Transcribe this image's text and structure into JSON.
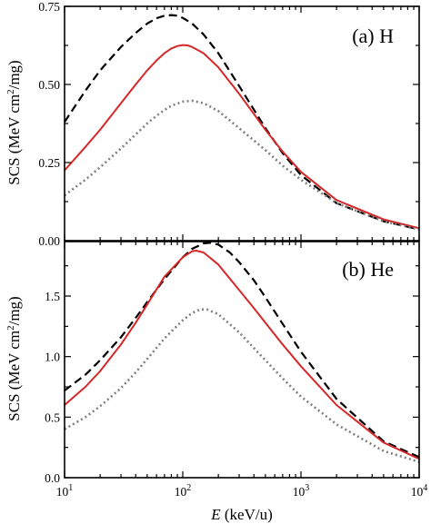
{
  "chart_data": {
    "type": "line",
    "xlabel_italic": "E",
    "xlabel_unit": " (keV/u)",
    "xscale": "log",
    "xlim": [
      10,
      10000
    ],
    "x_ticks": [
      {
        "base": "10",
        "exp": "1"
      },
      {
        "base": "10",
        "exp": "2"
      },
      {
        "base": "10",
        "exp": "3"
      },
      {
        "base": "10",
        "exp": "4"
      }
    ],
    "ylabel_pre": "SCS (MeV cm",
    "ylabel_sup": "2",
    "ylabel_post": "/mg)",
    "series_styles": [
      {
        "color": "#000000",
        "dash": "9,5",
        "width": 2.2
      },
      {
        "color": "#d62728",
        "dash": "",
        "width": 2.0
      },
      {
        "color": "#808080",
        "dash": "2,3.2",
        "width": 2.6
      }
    ],
    "panels": [
      {
        "label": "(a) H",
        "ylim": [
          0,
          0.75
        ],
        "yticks": [
          0.0,
          0.25,
          0.5,
          0.75
        ],
        "ytick_labels": [
          "0.00",
          "0.25",
          "0.50",
          "0.75"
        ],
        "series": [
          {
            "x": [
              10,
              15,
              20,
              30,
              40,
              50,
              60,
              70,
              80,
              90,
              100,
              120,
              150,
              200,
              300,
              500,
              700,
              1000,
              2000,
              5000,
              10000
            ],
            "values": [
              0.38,
              0.48,
              0.545,
              0.62,
              0.665,
              0.695,
              0.712,
              0.72,
              0.722,
              0.72,
              0.713,
              0.695,
              0.66,
              0.6,
              0.495,
              0.36,
              0.28,
              0.21,
              0.12,
              0.062,
              0.036
            ]
          },
          {
            "x": [
              10,
              15,
              20,
              30,
              40,
              50,
              60,
              70,
              80,
              90,
              100,
              110,
              120,
              150,
              200,
              300,
              500,
              700,
              1000,
              2000,
              5000,
              10000
            ],
            "values": [
              0.225,
              0.3,
              0.355,
              0.44,
              0.5,
              0.545,
              0.577,
              0.6,
              0.615,
              0.623,
              0.626,
              0.625,
              0.62,
              0.6,
              0.555,
              0.47,
              0.355,
              0.285,
              0.22,
              0.13,
              0.068,
              0.04
            ]
          },
          {
            "x": [
              10,
              15,
              20,
              30,
              40,
              50,
              60,
              70,
              80,
              100,
              120,
              150,
              200,
              300,
              500,
              700,
              1000,
              2000,
              5000,
              10000
            ],
            "values": [
              0.145,
              0.195,
              0.235,
              0.295,
              0.34,
              0.375,
              0.4,
              0.418,
              0.432,
              0.445,
              0.448,
              0.44,
              0.415,
              0.36,
              0.29,
              0.24,
              0.195,
              0.12,
              0.062,
              0.036
            ]
          }
        ]
      },
      {
        "label": "(b) He",
        "ylim": [
          0,
          1.95
        ],
        "yticks": [
          0.0,
          0.5,
          1.0,
          1.5
        ],
        "ytick_labels": [
          "0.0",
          "0.5",
          "1.0",
          "1.5"
        ],
        "series": [
          {
            "x": [
              10,
              15,
              20,
              30,
              40,
              50,
              70,
              100,
              120,
              150,
              170,
              200,
              250,
              300,
              400,
              500,
              700,
              1000,
              2000,
              5000,
              10000
            ],
            "values": [
              0.72,
              0.85,
              0.97,
              1.16,
              1.32,
              1.45,
              1.64,
              1.82,
              1.89,
              1.935,
              1.94,
              1.925,
              1.86,
              1.78,
              1.63,
              1.49,
              1.27,
              1.04,
              0.65,
              0.3,
              0.17
            ]
          },
          {
            "x": [
              10,
              15,
              20,
              30,
              40,
              50,
              70,
              100,
              120,
              130,
              150,
              200,
              300,
              400,
              500,
              700,
              1000,
              2000,
              5000,
              10000
            ],
            "values": [
              0.6,
              0.75,
              0.88,
              1.1,
              1.28,
              1.43,
              1.66,
              1.82,
              1.87,
              1.875,
              1.86,
              1.76,
              1.55,
              1.4,
              1.28,
              1.1,
              0.92,
              0.6,
              0.29,
              0.155
            ]
          },
          {
            "x": [
              10,
              15,
              20,
              30,
              40,
              50,
              70,
              100,
              120,
              140,
              160,
              200,
              300,
              500,
              700,
              1000,
              2000,
              5000,
              10000
            ],
            "values": [
              0.4,
              0.5,
              0.59,
              0.74,
              0.87,
              0.98,
              1.15,
              1.3,
              1.36,
              1.39,
              1.39,
              1.35,
              1.2,
              0.97,
              0.82,
              0.67,
              0.44,
              0.22,
              0.13
            ]
          }
        ]
      }
    ]
  }
}
